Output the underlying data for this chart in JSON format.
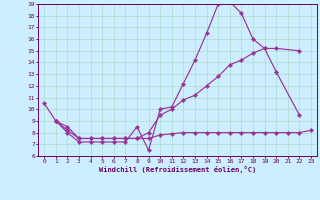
{
  "xlabel": "Windchill (Refroidissement éolien,°C)",
  "bg_color": "#cceeff",
  "line_color": "#993399",
  "grid_color": "#aaddcc",
  "xlim": [
    -0.5,
    23.5
  ],
  "ylim": [
    6,
    19
  ],
  "xticks": [
    0,
    1,
    2,
    3,
    4,
    5,
    6,
    7,
    8,
    9,
    10,
    11,
    12,
    13,
    14,
    15,
    16,
    17,
    18,
    19,
    20,
    21,
    22,
    23
  ],
  "yticks": [
    6,
    7,
    8,
    9,
    10,
    11,
    12,
    13,
    14,
    15,
    16,
    17,
    18,
    19
  ],
  "line1_x": [
    0,
    1,
    2,
    3,
    4,
    5,
    6,
    7,
    8,
    9,
    10,
    11,
    12,
    13,
    14,
    15,
    16,
    17,
    18,
    19,
    20,
    22
  ],
  "line1_y": [
    10.5,
    9.0,
    8.0,
    7.2,
    7.2,
    7.2,
    7.2,
    7.2,
    8.5,
    6.5,
    10.0,
    10.2,
    12.2,
    14.2,
    16.5,
    19.0,
    19.2,
    18.2,
    16.0,
    15.2,
    13.2,
    9.5
  ],
  "line2_x": [
    1,
    2,
    3,
    4,
    5,
    6,
    7,
    8,
    9,
    10,
    11,
    12,
    13,
    14,
    15,
    16,
    17,
    18,
    19,
    20,
    22
  ],
  "line2_y": [
    9.0,
    8.5,
    7.5,
    7.5,
    7.5,
    7.5,
    7.5,
    7.5,
    8.0,
    9.5,
    10.0,
    10.8,
    11.2,
    12.0,
    12.8,
    13.8,
    14.2,
    14.8,
    15.2,
    15.2,
    15.0
  ],
  "line3_x": [
    1,
    2,
    3,
    4,
    5,
    6,
    7,
    8,
    9,
    10,
    11,
    12,
    13,
    14,
    15,
    16,
    17,
    18,
    19,
    20,
    21,
    22,
    23
  ],
  "line3_y": [
    9.0,
    8.2,
    7.5,
    7.5,
    7.5,
    7.5,
    7.5,
    7.5,
    7.5,
    7.8,
    7.9,
    8.0,
    8.0,
    8.0,
    8.0,
    8.0,
    8.0,
    8.0,
    8.0,
    8.0,
    8.0,
    8.0,
    8.2
  ]
}
